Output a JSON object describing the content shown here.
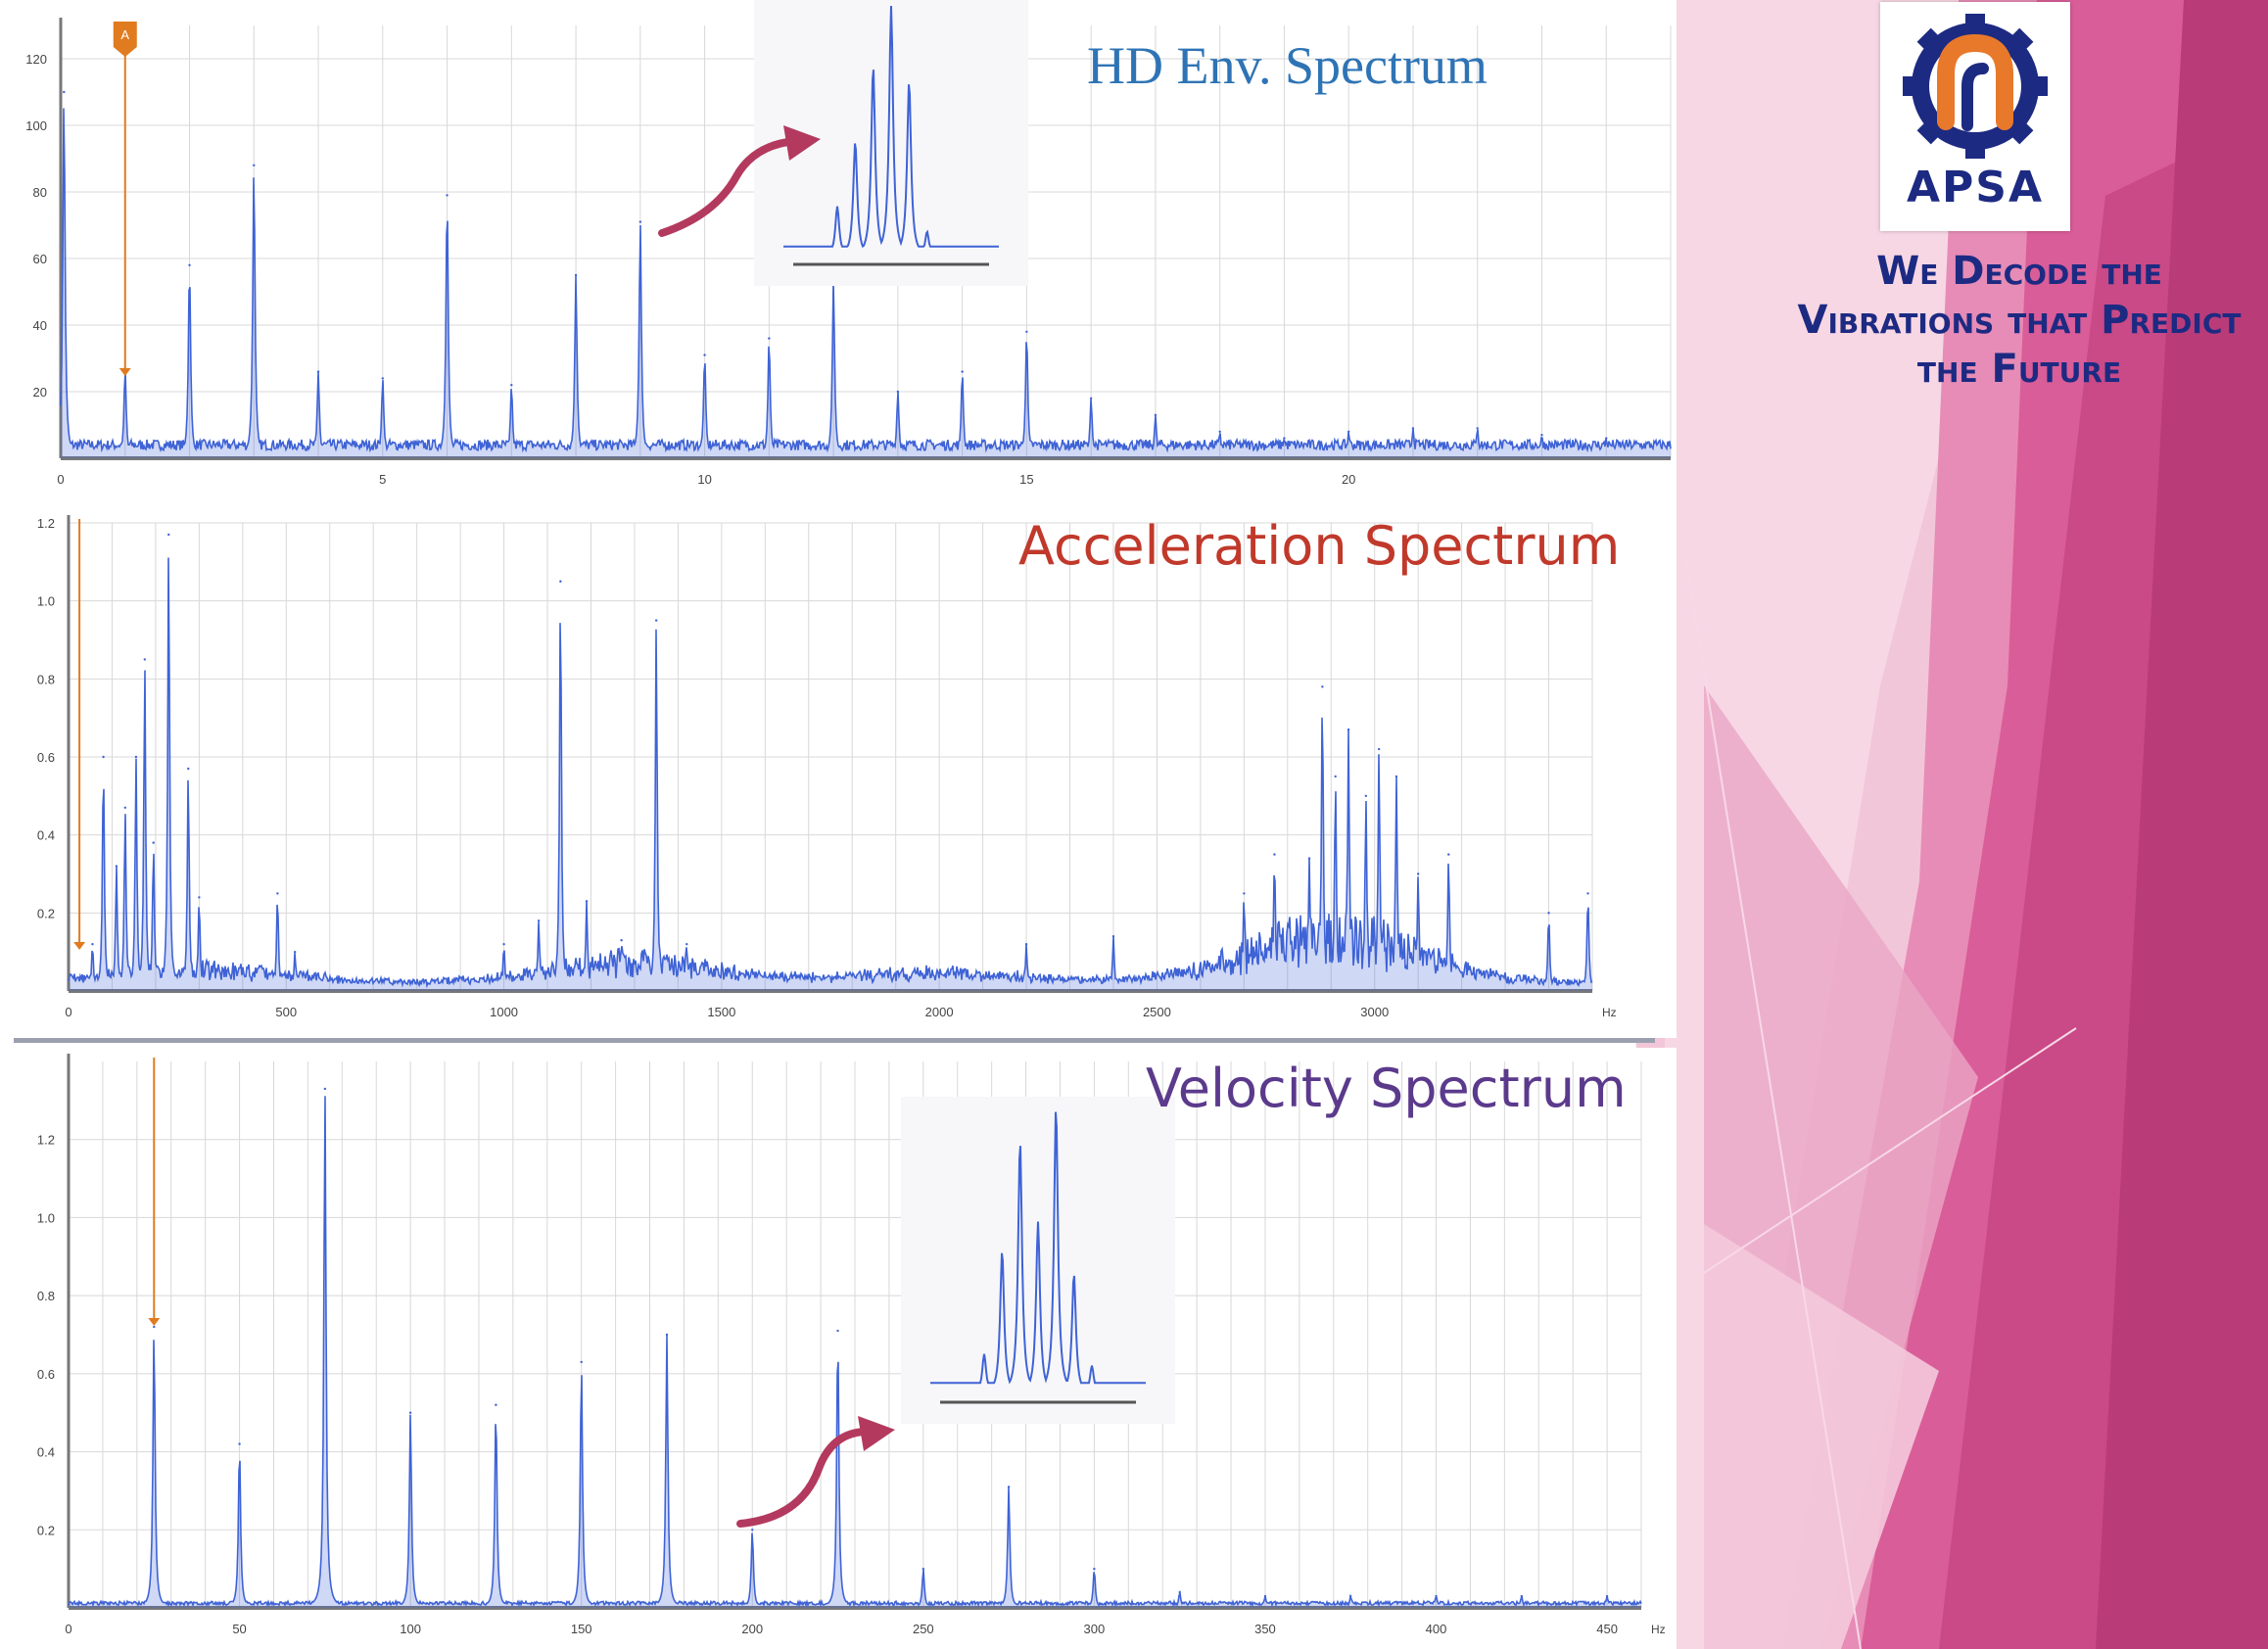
{
  "brand": {
    "name": "APSA",
    "tagline": [
      "We Decode the",
      "Vibrations that Predict",
      "the Future"
    ]
  },
  "colors": {
    "spectrum": "#3f63d6",
    "grid": "#d8d8d8",
    "marker": "#e07b20",
    "arrow": "#b33a5e",
    "env_title": "#2e74b5",
    "acc_title": "#c0392b",
    "vel_title": "#5b3a8c",
    "logo_blue": "#1d2a82",
    "logo_orange": "#e8792b"
  },
  "chart_data": [
    {
      "id": "envelope",
      "type": "line",
      "title": "HD Env. Spectrum",
      "xlabel": "",
      "ylabel": "",
      "xlim": [
        0,
        25
      ],
      "ylim": [
        0,
        130
      ],
      "xticks": [
        "0",
        "5",
        "10",
        "15",
        "20"
      ],
      "yticks": [
        "20",
        "40",
        "60",
        "80",
        "100",
        "120"
      ],
      "grid": true,
      "cursor": {
        "label": "A",
        "x": 1.0
      },
      "peaks": [
        [
          0.05,
          110
        ],
        [
          1,
          27
        ],
        [
          2,
          58
        ],
        [
          3,
          88
        ],
        [
          4,
          26
        ],
        [
          5,
          24
        ],
        [
          6,
          79
        ],
        [
          7,
          22
        ],
        [
          8,
          55
        ],
        [
          9,
          71
        ],
        [
          10,
          31
        ],
        [
          11,
          36
        ],
        [
          12,
          54
        ],
        [
          13,
          20
        ],
        [
          14,
          26
        ],
        [
          15,
          38
        ],
        [
          16,
          18
        ],
        [
          17,
          13
        ],
        [
          18,
          8
        ],
        [
          19,
          6
        ],
        [
          20,
          8
        ],
        [
          21,
          9
        ],
        [
          22,
          9
        ],
        [
          23,
          7
        ],
        [
          24,
          6
        ]
      ],
      "inset": {
        "peaks": [
          [
            -3,
            0.2
          ],
          [
            -2,
            0.46
          ],
          [
            -1,
            0.76
          ],
          [
            0,
            1.0
          ],
          [
            1,
            0.7
          ],
          [
            2,
            0.1
          ]
        ]
      }
    },
    {
      "id": "acceleration",
      "type": "line",
      "title": "Acceleration Spectrum",
      "xlabel": "",
      "ylabel": "",
      "x_unit": "Hz",
      "xlim": [
        0,
        3500
      ],
      "ylim": [
        0,
        1.2
      ],
      "xticks": [
        "0",
        "500",
        "1000",
        "1500",
        "2000",
        "2500",
        "3000"
      ],
      "yticks": [
        "0.2",
        "0.4",
        "0.6",
        "0.8",
        "1.0",
        "1.2"
      ],
      "grid": true,
      "cursor": {
        "x": 25
      },
      "peaks": [
        [
          55,
          0.12
        ],
        [
          80,
          0.6
        ],
        [
          110,
          0.32
        ],
        [
          130,
          0.47
        ],
        [
          155,
          0.6
        ],
        [
          175,
          0.85
        ],
        [
          195,
          0.38
        ],
        [
          230,
          1.17
        ],
        [
          275,
          0.57
        ],
        [
          300,
          0.24
        ],
        [
          480,
          0.25
        ],
        [
          520,
          0.1
        ],
        [
          1000,
          0.12
        ],
        [
          1080,
          0.18
        ],
        [
          1130,
          1.05
        ],
        [
          1190,
          0.23
        ],
        [
          1270,
          0.13
        ],
        [
          1350,
          0.95
        ],
        [
          1420,
          0.12
        ],
        [
          2200,
          0.12
        ],
        [
          2400,
          0.14
        ],
        [
          2700,
          0.25
        ],
        [
          2770,
          0.35
        ],
        [
          2850,
          0.34
        ],
        [
          2880,
          0.78
        ],
        [
          2910,
          0.55
        ],
        [
          2940,
          0.67
        ],
        [
          2980,
          0.5
        ],
        [
          3010,
          0.62
        ],
        [
          3050,
          0.55
        ],
        [
          3100,
          0.3
        ],
        [
          3170,
          0.35
        ],
        [
          3400,
          0.2
        ],
        [
          3490,
          0.25
        ]
      ],
      "bumps": [
        [
          300,
          0.04
        ],
        [
          1300,
          0.06
        ],
        [
          2000,
          0.03
        ],
        [
          2900,
          0.14
        ]
      ]
    },
    {
      "id": "velocity",
      "type": "line",
      "title": "Velocity Spectrum",
      "xlabel": "",
      "ylabel": "",
      "x_unit": "Hz",
      "xlim": [
        0,
        460
      ],
      "ylim": [
        0,
        1.4
      ],
      "xticks": [
        "0",
        "50",
        "100",
        "150",
        "200",
        "250",
        "300",
        "350",
        "400",
        "450"
      ],
      "yticks": [
        "0.2",
        "0.4",
        "0.6",
        "0.8",
        "1.0",
        "1.2"
      ],
      "grid": true,
      "cursor": {
        "x": 25
      },
      "peaks": [
        [
          25,
          0.72
        ],
        [
          50,
          0.42
        ],
        [
          75,
          1.33
        ],
        [
          100,
          0.5
        ],
        [
          125,
          0.52
        ],
        [
          150,
          0.63
        ],
        [
          175,
          0.7
        ],
        [
          200,
          0.2
        ],
        [
          225,
          0.71
        ],
        [
          250,
          0.1
        ],
        [
          275,
          0.31
        ],
        [
          300,
          0.1
        ],
        [
          325,
          0.04
        ],
        [
          350,
          0.03
        ],
        [
          375,
          0.03
        ],
        [
          400,
          0.03
        ],
        [
          425,
          0.03
        ],
        [
          450,
          0.03
        ]
      ],
      "inset": {
        "peaks": [
          [
            -3,
            0.14
          ],
          [
            -2,
            0.5
          ],
          [
            -1,
            0.88
          ],
          [
            0,
            0.6
          ],
          [
            1,
            1.0
          ],
          [
            2,
            0.42
          ],
          [
            3,
            0.1
          ]
        ]
      }
    }
  ]
}
